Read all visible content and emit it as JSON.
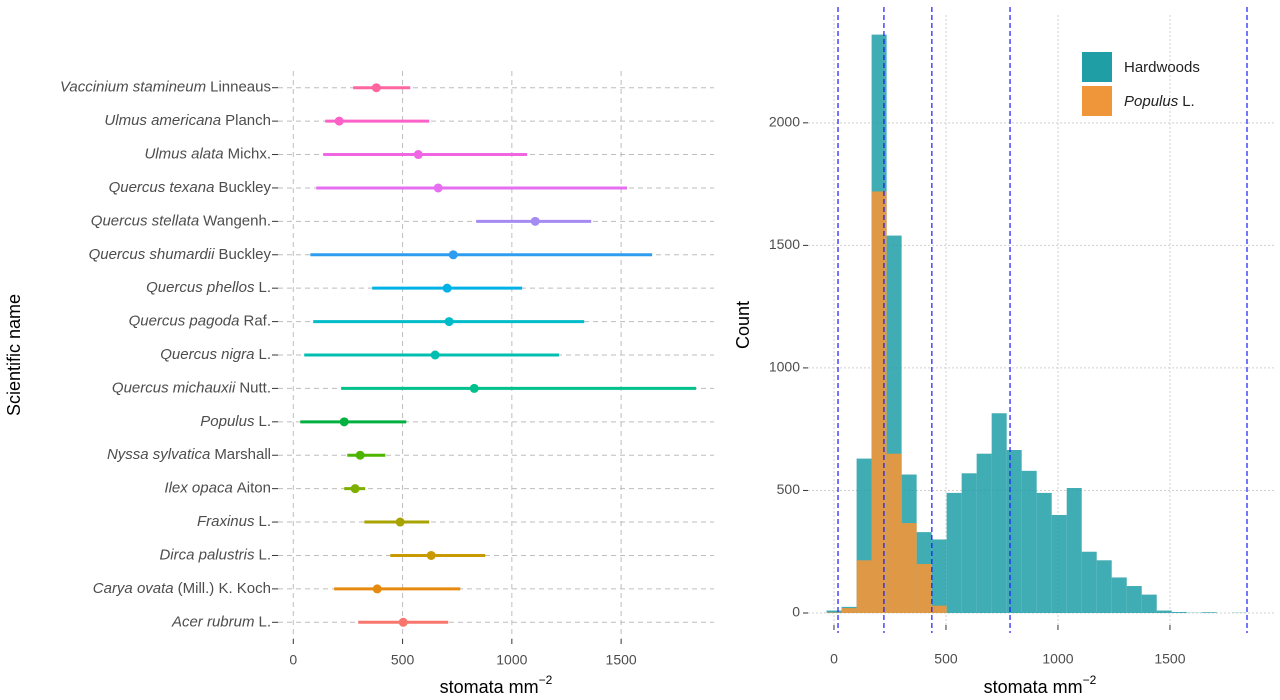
{
  "chart_data": [
    {
      "type": "range-dot",
      "x_label": {
        "text": "stomata mm",
        "sup": "−2"
      },
      "y_label": "Scientific name",
      "categories": [
        {
          "italic": "Acer rubrum",
          "plain": "L."
        },
        {
          "italic": "Carya ovata",
          "plain": "(Mill.) K. Koch"
        },
        {
          "italic": "Dirca palustris",
          "plain": "L."
        },
        {
          "italic": "Fraxinus",
          "plain": "L."
        },
        {
          "italic": "Ilex opaca",
          "plain": "Aiton"
        },
        {
          "italic": "Nyssa sylvatica",
          "plain": "Marshall"
        },
        {
          "italic": "Populus",
          "plain": "L."
        },
        {
          "italic": "Quercus michauxii",
          "plain": "Nutt."
        },
        {
          "italic": "Quercus nigra",
          "plain": "L."
        },
        {
          "italic": "Quercus pagoda",
          "plain": "Raf."
        },
        {
          "italic": "Quercus phellos",
          "plain": "L."
        },
        {
          "italic": "Quercus shumardii",
          "plain": "Buckley"
        },
        {
          "italic": "Quercus stellata",
          "plain": "Wangenh."
        },
        {
          "italic": "Quercus texana",
          "plain": "Buckley"
        },
        {
          "italic": "Ulmus alata",
          "plain": "Michx."
        },
        {
          "italic": "Ulmus americana",
          "plain": "Planch"
        },
        {
          "italic": "Vaccinium stamineum",
          "plain": "Linneaus"
        }
      ],
      "values": [
        503,
        384,
        631,
        489,
        283,
        306,
        233,
        828,
        649,
        713,
        704,
        732,
        1107,
        663,
        572,
        210,
        380
      ],
      "low": [
        297,
        187,
        444,
        325,
        233,
        247,
        32,
        219,
        50,
        91,
        361,
        78,
        837,
        105,
        137,
        146,
        274
      ],
      "high": [
        709,
        764,
        878,
        622,
        329,
        421,
        517,
        1843,
        1216,
        1331,
        1047,
        1642,
        1363,
        1527,
        1070,
        622,
        535
      ],
      "colors": [
        "#f8766d",
        "#e58a0e",
        "#c99a00",
        "#a9a300",
        "#7dae00",
        "#4db500",
        "#00b140",
        "#00c08b",
        "#00bfb0",
        "#00bcc8",
        "#00b2e6",
        "#2e9df0",
        "#a48bf3",
        "#e56ff0",
        "#f066e2",
        "#fb61c7",
        "#ff66a0"
      ],
      "xlim": [
        -70,
        1925
      ],
      "xticks": [
        0,
        500,
        1000,
        1500
      ],
      "grid": true
    },
    {
      "type": "histogram",
      "x_label": {
        "text": "stomata mm",
        "sup": "−2"
      },
      "y_label": "Count",
      "bins": [
        -33,
        34,
        101,
        168,
        235,
        302,
        369,
        436,
        503,
        570,
        637,
        704,
        771,
        838,
        905,
        972,
        1039,
        1106,
        1173,
        1240,
        1307,
        1374,
        1441,
        1508,
        1575,
        1642,
        1709,
        1776,
        1843
      ],
      "series": [
        {
          "name": {
            "plain": "Hardwoods"
          },
          "color": "#1f9ea6",
          "values": [
            10,
            25,
            630,
            2360,
            1540,
            565,
            330,
            300,
            490,
            570,
            650,
            815,
            665,
            580,
            490,
            400,
            510,
            250,
            215,
            145,
            110,
            75,
            10,
            4,
            1,
            3,
            0,
            1
          ]
        },
        {
          "name": {
            "italic": "Populus",
            "plain": "L."
          },
          "color": "#f0963a",
          "values": [
            2,
            20,
            215,
            1720,
            650,
            367,
            200,
            30,
            0,
            0,
            0,
            0,
            0,
            0,
            0,
            0,
            0,
            0,
            0,
            0,
            0,
            0,
            0,
            0,
            0,
            0,
            0,
            0
          ]
        }
      ],
      "vlines": [
        18,
        223,
        437,
        786,
        1844
      ],
      "vline_color": "#1a1aff",
      "xlim": [
        -116,
        1969
      ],
      "xticks": [
        0,
        500,
        1000,
        1500
      ],
      "ylim": [
        -49,
        2440
      ],
      "yticks": [
        0,
        500,
        1000,
        1500,
        2000
      ],
      "grid": true,
      "legend": "top-right"
    }
  ]
}
